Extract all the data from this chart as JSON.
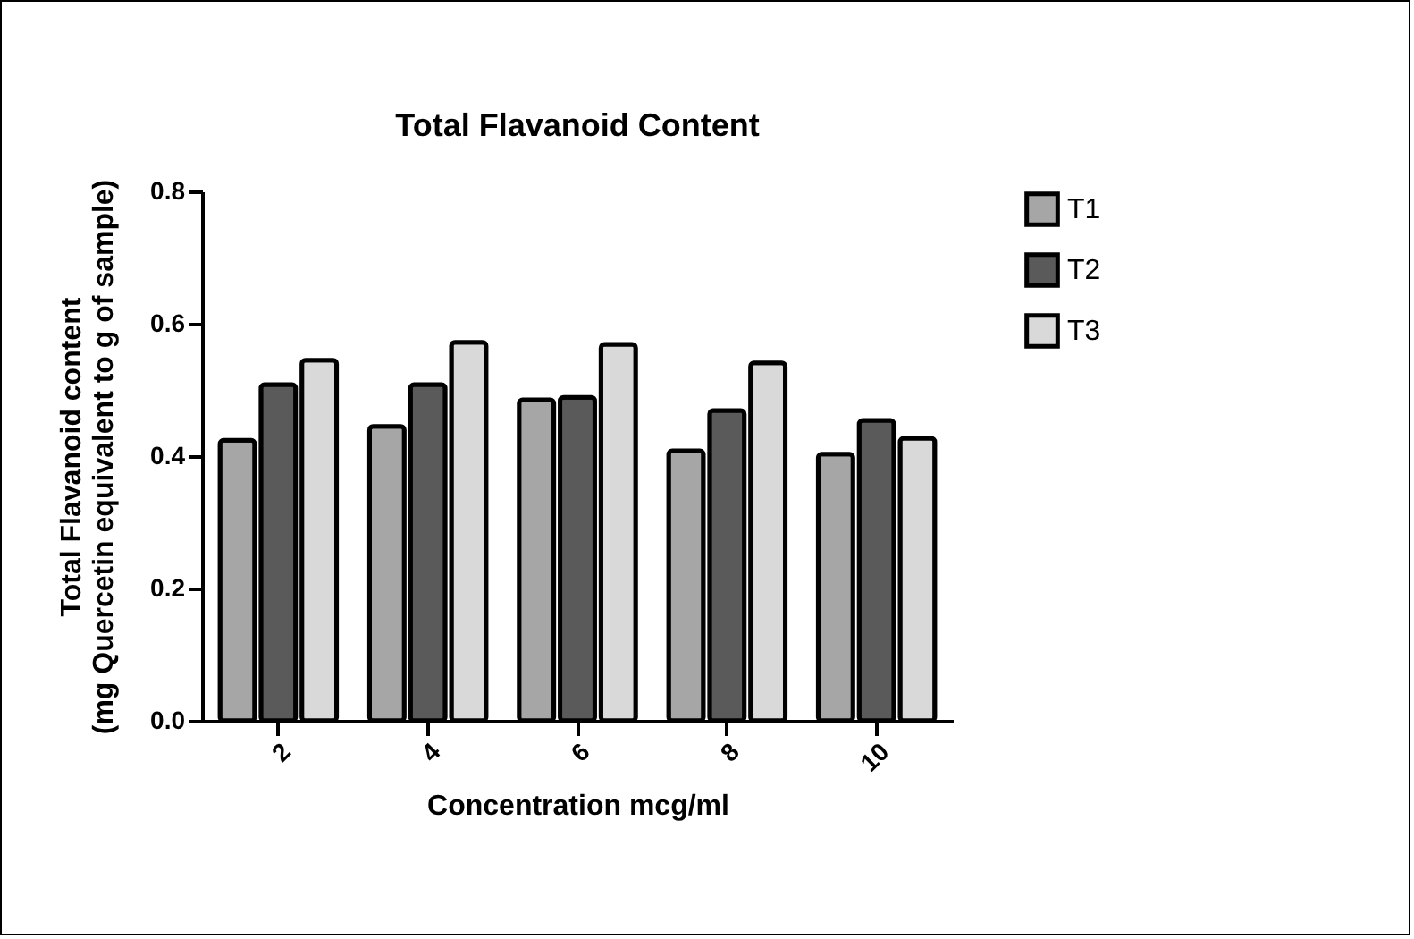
{
  "chart_data": {
    "type": "bar",
    "title": "Total Flavanoid Content",
    "xlabel": "Concentration mcg/ml",
    "ylabel": [
      "Total Flavanoid content",
      "(mg Quercetin equivalent to g of sample)"
    ],
    "categories": [
      "2",
      "4",
      "6",
      "8",
      "10"
    ],
    "series": [
      {
        "name": "T1",
        "color": "#a6a6a6",
        "values": [
          0.424,
          0.445,
          0.485,
          0.408,
          0.403
        ]
      },
      {
        "name": "T2",
        "color": "#5a5a5a",
        "values": [
          0.508,
          0.508,
          0.489,
          0.469,
          0.454
        ]
      },
      {
        "name": "T3",
        "color": "#d9d9d9",
        "values": [
          0.545,
          0.572,
          0.569,
          0.541,
          0.427
        ]
      }
    ],
    "ylim": [
      0,
      0.8
    ],
    "yticks": [
      {
        "value": 0,
        "label": "0.0"
      },
      {
        "value": 0.2,
        "label": "0.2"
      },
      {
        "value": 0.4,
        "label": "0.4"
      },
      {
        "value": 0.6,
        "label": "0.6"
      },
      {
        "value": 0.8,
        "label": "0.8"
      }
    ],
    "grid": false,
    "legend": "right"
  }
}
